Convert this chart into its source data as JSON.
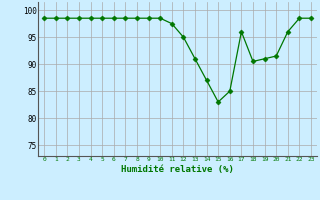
{
  "x": [
    0,
    1,
    2,
    3,
    4,
    5,
    6,
    7,
    8,
    9,
    10,
    11,
    12,
    13,
    14,
    15,
    16,
    17,
    18,
    19,
    20,
    21,
    22,
    23
  ],
  "y": [
    98.5,
    98.5,
    98.5,
    98.5,
    98.5,
    98.5,
    98.5,
    98.5,
    98.5,
    98.5,
    98.5,
    97.5,
    95,
    91,
    87,
    83,
    85,
    96,
    90.5,
    91,
    91.5,
    96,
    98.5,
    98.5
  ],
  "line_color": "#007700",
  "marker": "D",
  "marker_size": 2.5,
  "bg_color": "#cceeff",
  "grid_color": "#aaaaaa",
  "xlabel": "Humidité relative (%)",
  "xlabel_color": "#007700",
  "ylabel_ticks": [
    75,
    80,
    85,
    90,
    95,
    100
  ],
  "xlim": [
    -0.5,
    23.5
  ],
  "ylim": [
    73,
    101.5
  ]
}
